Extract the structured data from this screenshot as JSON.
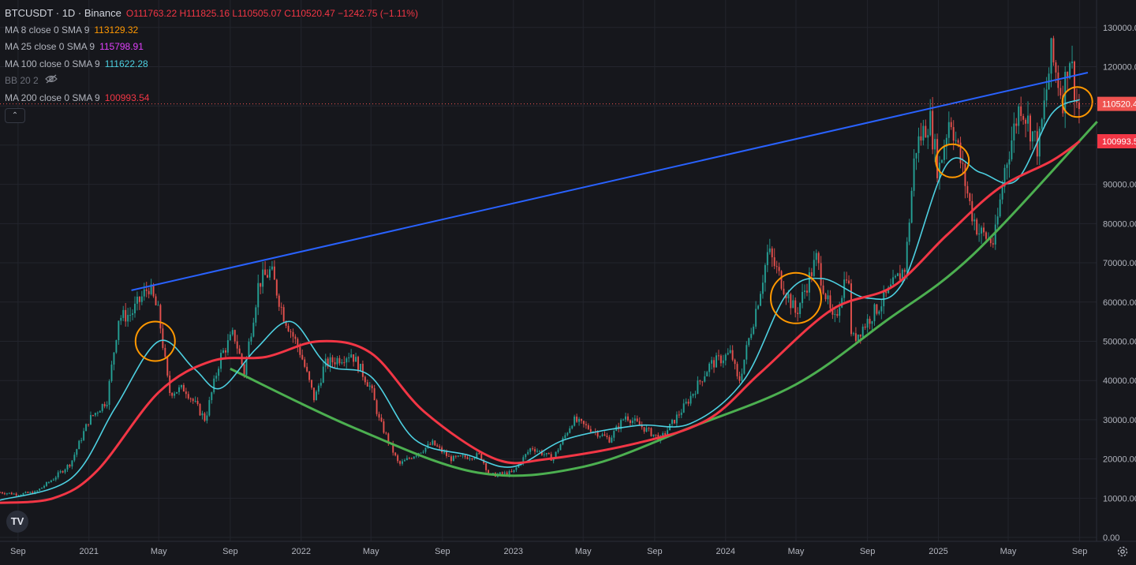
{
  "legend": {
    "symbol": "BTCUSDT · 1D · Binance",
    "ohlc": "O111763.22 H111825.16 L110505.07 C110520.47 −1242.75 (−1.11%)",
    "indicators": [
      {
        "name": "MA 8 close 0 SMA 9",
        "value": "113129.32",
        "color": "#ff9800"
      },
      {
        "name": "MA 25 close 0 SMA 9",
        "value": "115798.91",
        "color": "#e040fb"
      },
      {
        "name": "MA 100 close 0 SMA 9",
        "value": "111622.28",
        "color": "#4dd0e1"
      },
      {
        "name": "BB 20 2",
        "value": "",
        "color": "#6b6e78"
      },
      {
        "name": "MA 200 close 0 SMA 9",
        "value": "100993.54",
        "color": "#f23645"
      }
    ]
  },
  "price_tags": {
    "last": "110520.4",
    "ma200": "100993.5"
  },
  "colors": {
    "background": "#16171c",
    "grid": "#23252d",
    "up": "#26a69a",
    "down": "#ef5350",
    "trendline": "#2962ff",
    "curve": "#4caf50",
    "ma200": "#f23645",
    "ma100": "#4dd0e1",
    "circle": "#ff9800"
  },
  "icons": {
    "logo": "tradingview-logo-icon",
    "collapse": "chevron-up-icon",
    "settings": "gear-icon",
    "hidden": "eye-off-icon"
  },
  "chart_data": {
    "type": "candlestick",
    "title": "BTCUSDT · 1D · Binance",
    "y_ticks": [
      "130000.00",
      "120000.00",
      "110000.00",
      "100000.00",
      "90000.00",
      "80000.00",
      "70000.00",
      "60000.00",
      "50000.00",
      "40000.00",
      "30000.00",
      "20000.00",
      "10000.00",
      "0.00"
    ],
    "x_ticks": [
      "Sep",
      "2021",
      "May",
      "Sep",
      "2022",
      "May",
      "Sep",
      "2023",
      "May",
      "Sep",
      "2024",
      "May",
      "Sep",
      "2025",
      "May",
      "Sep"
    ],
    "x_range": [
      "2020-08-01",
      "2025-09-30"
    ],
    "y_range": [
      -1000,
      137000
    ],
    "price_series": [
      {
        "date": "2020-08-01",
        "price": 11500
      },
      {
        "date": "2020-09-01",
        "price": 11000
      },
      {
        "date": "2020-10-01",
        "price": 11500
      },
      {
        "date": "2020-11-01",
        "price": 15000
      },
      {
        "date": "2020-12-01",
        "price": 19000
      },
      {
        "date": "2021-01-01",
        "price": 30000
      },
      {
        "date": "2021-02-01",
        "price": 35000
      },
      {
        "date": "2021-02-21",
        "price": 56000
      },
      {
        "date": "2021-03-15",
        "price": 57000
      },
      {
        "date": "2021-04-14",
        "price": 64000
      },
      {
        "date": "2021-05-01",
        "price": 57000
      },
      {
        "date": "2021-05-19",
        "price": 37000
      },
      {
        "date": "2021-06-15",
        "price": 38000
      },
      {
        "date": "2021-07-20",
        "price": 30000
      },
      {
        "date": "2021-08-15",
        "price": 46000
      },
      {
        "date": "2021-09-07",
        "price": 52000
      },
      {
        "date": "2021-09-25",
        "price": 42000
      },
      {
        "date": "2021-10-20",
        "price": 65000
      },
      {
        "date": "2021-11-10",
        "price": 68000
      },
      {
        "date": "2021-12-01",
        "price": 57000
      },
      {
        "date": "2021-12-31",
        "price": 47000
      },
      {
        "date": "2022-01-24",
        "price": 35000
      },
      {
        "date": "2022-02-10",
        "price": 44000
      },
      {
        "date": "2022-03-28",
        "price": 47000
      },
      {
        "date": "2022-05-01",
        "price": 38000
      },
      {
        "date": "2022-05-15",
        "price": 30000
      },
      {
        "date": "2022-06-18",
        "price": 18500
      },
      {
        "date": "2022-08-15",
        "price": 24000
      },
      {
        "date": "2022-09-15",
        "price": 20000
      },
      {
        "date": "2022-11-05",
        "price": 21000
      },
      {
        "date": "2022-11-21",
        "price": 15800
      },
      {
        "date": "2022-12-31",
        "price": 16500
      },
      {
        "date": "2023-02-01",
        "price": 23000
      },
      {
        "date": "2023-03-10",
        "price": 20000
      },
      {
        "date": "2023-04-14",
        "price": 30000
      },
      {
        "date": "2023-06-15",
        "price": 25000
      },
      {
        "date": "2023-07-13",
        "price": 31000
      },
      {
        "date": "2023-09-11",
        "price": 25000
      },
      {
        "date": "2023-10-25",
        "price": 34000
      },
      {
        "date": "2023-12-05",
        "price": 44000
      },
      {
        "date": "2024-01-11",
        "price": 47000
      },
      {
        "date": "2024-01-23",
        "price": 39000
      },
      {
        "date": "2024-02-28",
        "price": 62000
      },
      {
        "date": "2024-03-14",
        "price": 73000
      },
      {
        "date": "2024-05-01",
        "price": 57000
      },
      {
        "date": "2024-06-05",
        "price": 71000
      },
      {
        "date": "2024-07-05",
        "price": 54000
      },
      {
        "date": "2024-07-29",
        "price": 69000
      },
      {
        "date": "2024-08-05",
        "price": 50000
      },
      {
        "date": "2024-10-01",
        "price": 61000
      },
      {
        "date": "2024-11-05",
        "price": 69000
      },
      {
        "date": "2024-11-22",
        "price": 99000
      },
      {
        "date": "2024-12-17",
        "price": 107000
      },
      {
        "date": "2025-01-01",
        "price": 93000
      },
      {
        "date": "2025-01-21",
        "price": 108000
      },
      {
        "date": "2025-02-27",
        "price": 83000
      },
      {
        "date": "2025-03-11",
        "price": 78000
      },
      {
        "date": "2025-04-07",
        "price": 75000
      },
      {
        "date": "2025-04-25",
        "price": 94000
      },
      {
        "date": "2025-05-22",
        "price": 111000
      },
      {
        "date": "2025-06-22",
        "price": 99000
      },
      {
        "date": "2025-07-14",
        "price": 123000
      },
      {
        "date": "2025-08-03",
        "price": 112000
      },
      {
        "date": "2025-08-14",
        "price": 124000
      },
      {
        "date": "2025-08-30",
        "price": 108000
      },
      {
        "date": "2025-09-01",
        "price": 110520
      }
    ],
    "ma100_series": [
      {
        "date": "2020-08-01",
        "price": 9500
      },
      {
        "date": "2020-12-01",
        "price": 15000
      },
      {
        "date": "2021-02-15",
        "price": 33000
      },
      {
        "date": "2021-05-01",
        "price": 50000
      },
      {
        "date": "2021-07-01",
        "price": 43000
      },
      {
        "date": "2021-08-15",
        "price": 38000
      },
      {
        "date": "2021-10-15",
        "price": 48000
      },
      {
        "date": "2021-12-15",
        "price": 55000
      },
      {
        "date": "2022-02-15",
        "price": 44000
      },
      {
        "date": "2022-05-01",
        "price": 41000
      },
      {
        "date": "2022-07-15",
        "price": 25000
      },
      {
        "date": "2022-10-15",
        "price": 21000
      },
      {
        "date": "2022-12-31",
        "price": 18000
      },
      {
        "date": "2023-04-01",
        "price": 25000
      },
      {
        "date": "2023-08-01",
        "price": 28500
      },
      {
        "date": "2023-11-01",
        "price": 29000
      },
      {
        "date": "2024-02-01",
        "price": 40000
      },
      {
        "date": "2024-04-15",
        "price": 62000
      },
      {
        "date": "2024-06-15",
        "price": 66000
      },
      {
        "date": "2024-09-01",
        "price": 61000
      },
      {
        "date": "2024-11-01",
        "price": 65000
      },
      {
        "date": "2025-01-15",
        "price": 95000
      },
      {
        "date": "2025-03-15",
        "price": 93000
      },
      {
        "date": "2025-05-15",
        "price": 91000
      },
      {
        "date": "2025-07-15",
        "price": 108000
      },
      {
        "date": "2025-09-01",
        "price": 111622
      }
    ],
    "ma200_series": [
      {
        "date": "2020-08-01",
        "price": 8800
      },
      {
        "date": "2020-11-01",
        "price": 10000
      },
      {
        "date": "2021-01-15",
        "price": 17000
      },
      {
        "date": "2021-05-01",
        "price": 37000
      },
      {
        "date": "2021-08-01",
        "price": 45000
      },
      {
        "date": "2021-11-01",
        "price": 46000
      },
      {
        "date": "2022-02-01",
        "price": 50000
      },
      {
        "date": "2022-05-01",
        "price": 47000
      },
      {
        "date": "2022-08-01",
        "price": 32000
      },
      {
        "date": "2022-12-01",
        "price": 20000
      },
      {
        "date": "2023-03-01",
        "price": 20000
      },
      {
        "date": "2023-08-01",
        "price": 24000
      },
      {
        "date": "2023-12-01",
        "price": 30000
      },
      {
        "date": "2024-03-01",
        "price": 42000
      },
      {
        "date": "2024-07-01",
        "price": 58000
      },
      {
        "date": "2024-10-15",
        "price": 64000
      },
      {
        "date": "2025-01-15",
        "price": 77000
      },
      {
        "date": "2025-04-15",
        "price": 89000
      },
      {
        "date": "2025-07-15",
        "price": 96000
      },
      {
        "date": "2025-09-01",
        "price": 100993
      }
    ],
    "trendline": [
      {
        "date": "2021-03-15",
        "price": 63000
      },
      {
        "date": "2025-09-15",
        "price": 118500
      }
    ],
    "support_curve": [
      {
        "date": "2021-09-01",
        "price": 43000
      },
      {
        "date": "2022-04-01",
        "price": 28000
      },
      {
        "date": "2022-11-01",
        "price": 16500
      },
      {
        "date": "2023-05-01",
        "price": 18000
      },
      {
        "date": "2023-11-01",
        "price": 28000
      },
      {
        "date": "2024-05-01",
        "price": 39000
      },
      {
        "date": "2024-10-01",
        "price": 55000
      },
      {
        "date": "2025-03-01",
        "price": 72000
      },
      {
        "date": "2025-10-01",
        "price": 106000
      }
    ],
    "highlight_circles": [
      {
        "date": "2021-04-25",
        "price": 50000
      },
      {
        "date": "2024-05-01",
        "price": 61000
      },
      {
        "date": "2025-01-25",
        "price": 96000
      },
      {
        "date": "2025-08-28",
        "price": 111000
      }
    ]
  }
}
